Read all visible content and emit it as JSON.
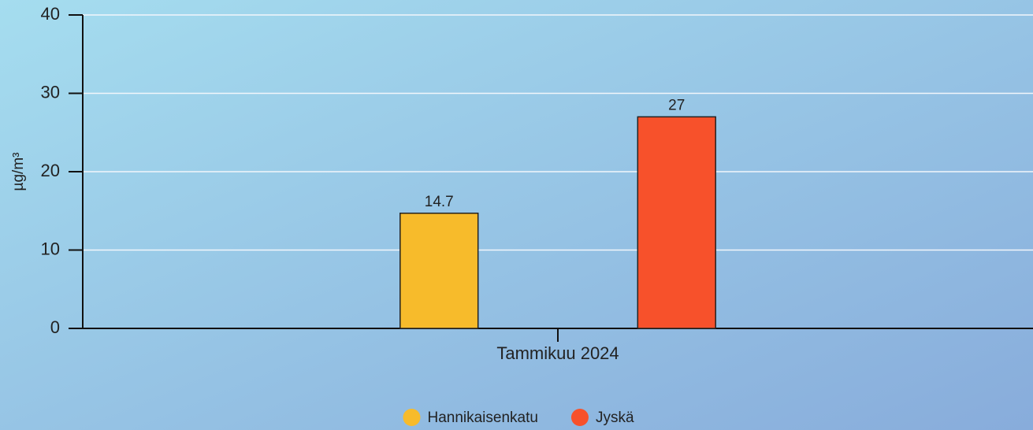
{
  "chart_data": {
    "type": "bar",
    "y_label": "µg/m³",
    "categories": [
      "Tammikuu 2024"
    ],
    "series": [
      {
        "name": "Hannikaisenkatu",
        "color": "#f7bb2b",
        "values": [
          14.7
        ]
      },
      {
        "name": "Jyskä",
        "color": "#f7512b",
        "values": [
          27
        ]
      }
    ],
    "ylim": [
      0,
      40
    ],
    "yticks": [
      0,
      10,
      20,
      30,
      40
    ],
    "grid": true,
    "legend": "bottom"
  }
}
